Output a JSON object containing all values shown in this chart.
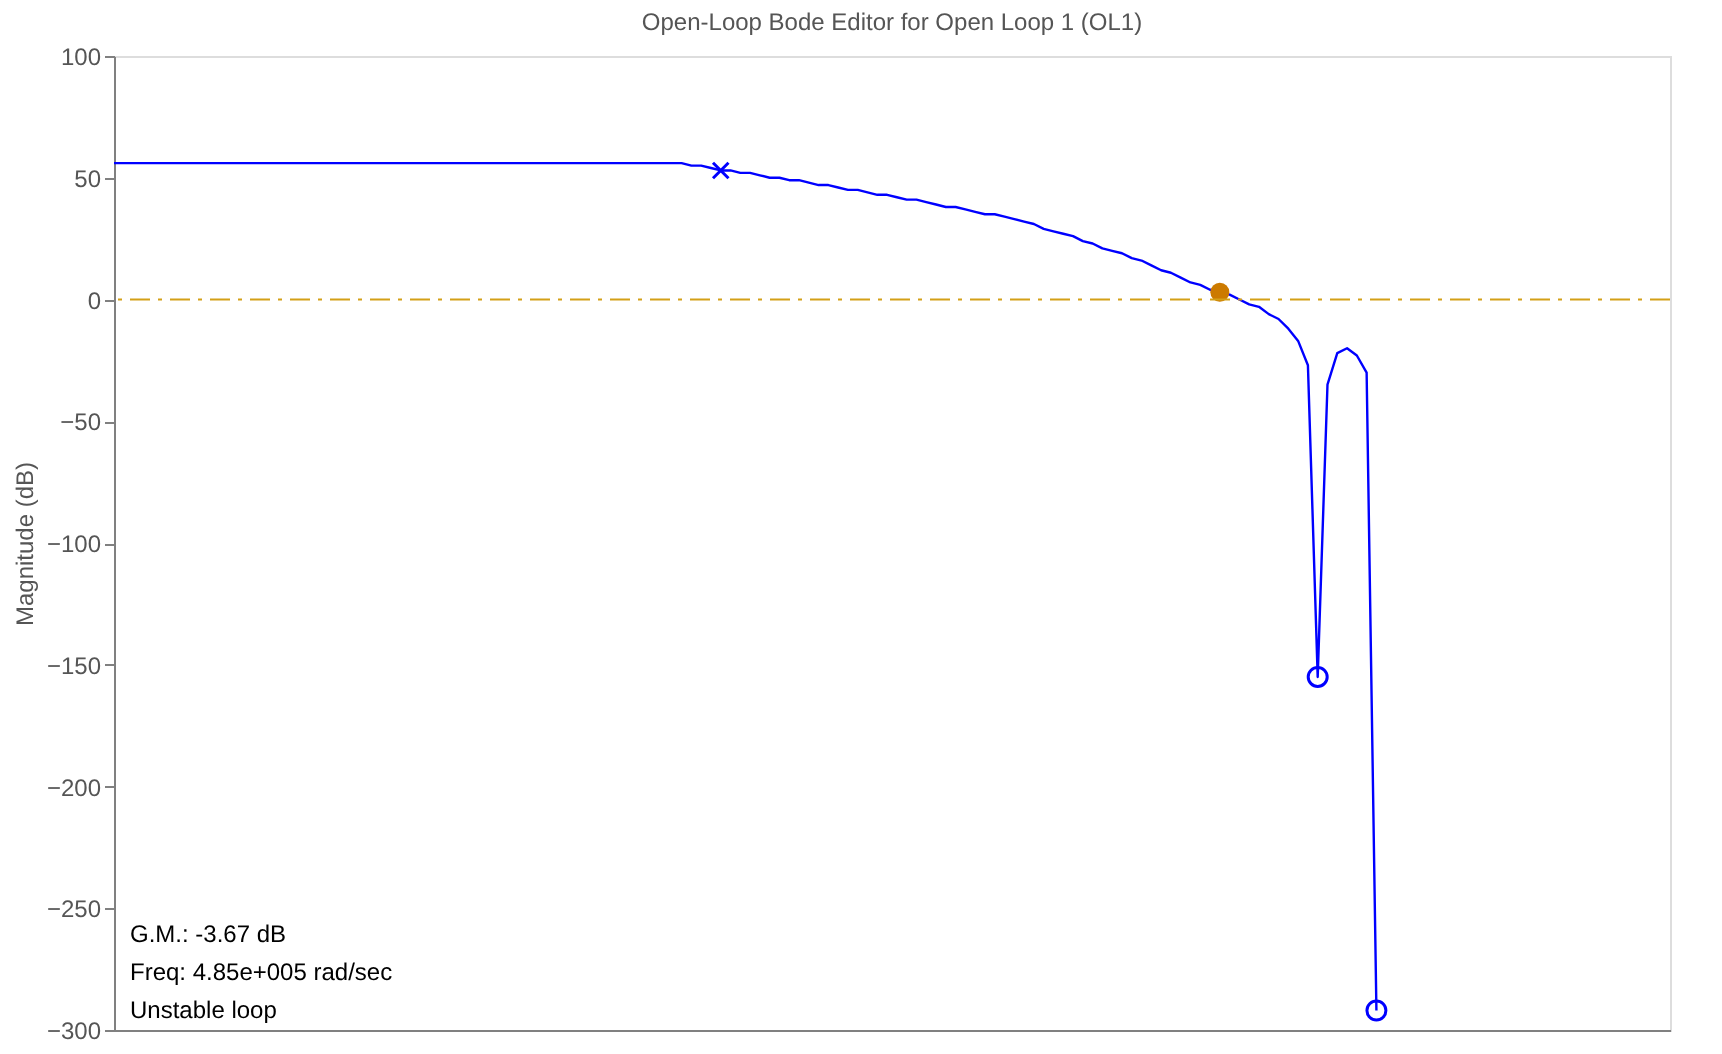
{
  "chart_data": {
    "type": "line",
    "title": "Open-Loop Bode Editor for Open Loop 1 (OL1)",
    "ylabel": "Magnitude (dB)",
    "categories": [
      null,
      null,
      null,
      null,
      null,
      null,
      null,
      null,
      null,
      null,
      null,
      null,
      null,
      null,
      null,
      null,
      null,
      null,
      null,
      null,
      null,
      null,
      null,
      null,
      null,
      null,
      null,
      null,
      null,
      null,
      null,
      null,
      null,
      null,
      null,
      null,
      null,
      null,
      null,
      null,
      null,
      null,
      null,
      null,
      null,
      null,
      null,
      null,
      null,
      null,
      null,
      null,
      null,
      null,
      null,
      null,
      null,
      null,
      null,
      null,
      null,
      null,
      null,
      null,
      null,
      null,
      null,
      null,
      null,
      null,
      null,
      null,
      null,
      null,
      null,
      null,
      null,
      null,
      null,
      null,
      null,
      null,
      null,
      null,
      null,
      null,
      null,
      null,
      null,
      null,
      null,
      null,
      null,
      null,
      null,
      null,
      null,
      null,
      null,
      null,
      null,
      null,
      null,
      null,
      null,
      null,
      null,
      null,
      null,
      null,
      null,
      null,
      null,
      null,
      null,
      null,
      null,
      null,
      null,
      null,
      null,
      null,
      null,
      null,
      null,
      null,
      null,
      null,
      null,
      null,
      null,
      null,
      null,
      null,
      null,
      null,
      null,
      null,
      null,
      null,
      null,
      null,
      null,
      null,
      null,
      null,
      null,
      null,
      null,
      null,
      null,
      null,
      null,
      null,
      null,
      null,
      null,
      null,
      null,
      null
    ],
    "series": [
      {
        "color": "#0000ff",
        "marker": "none",
        "line_style": "solid",
        "values": [
          56,
          56,
          56,
          56,
          56,
          56,
          56,
          56,
          56,
          56,
          56,
          56,
          56,
          56,
          56,
          56,
          56,
          56,
          56,
          56,
          56,
          56,
          56,
          56,
          56,
          56,
          56,
          56,
          56,
          56,
          56,
          56,
          56,
          56,
          56,
          56,
          56,
          56,
          56,
          56,
          56,
          56,
          56,
          56,
          56,
          56,
          56,
          56,
          56,
          56,
          56,
          56,
          56,
          56,
          56,
          56,
          56,
          56,
          56,
          55,
          55,
          54,
          53,
          53,
          52,
          52,
          51,
          50,
          50,
          49,
          49,
          48,
          47,
          47,
          46,
          45,
          45,
          44,
          43,
          43,
          42,
          41,
          41,
          40,
          39,
          38,
          38,
          37,
          36,
          35,
          35,
          34,
          33,
          32,
          31,
          29,
          28,
          27,
          26,
          24,
          23,
          21,
          20,
          19,
          17,
          16,
          14,
          12,
          11,
          9,
          7,
          6,
          4,
          3,
          2,
          0,
          -2,
          -3,
          -6,
          -8,
          -12,
          -17,
          -27,
          -155,
          -35,
          -22,
          -20,
          -23,
          -30,
          -292,
          null,
          null,
          null,
          null,
          null,
          null,
          null,
          null,
          null,
          null,
          null,
          null,
          null,
          null,
          null,
          null,
          null,
          null,
          null,
          null,
          null,
          null,
          null,
          null,
          null,
          null,
          null,
          null,
          null,
          null
        ]
      },
      {
        "type": "scatter",
        "color": "#0000ff",
        "marker": "cross",
        "values": [
          null,
          null,
          null,
          null,
          null,
          null,
          null,
          null,
          null,
          null,
          null,
          null,
          null,
          null,
          null,
          null,
          null,
          null,
          null,
          null,
          null,
          null,
          null,
          null,
          null,
          null,
          null,
          null,
          null,
          null,
          null,
          null,
          null,
          null,
          null,
          null,
          null,
          null,
          null,
          null,
          null,
          null,
          null,
          null,
          null,
          null,
          null,
          null,
          null,
          null,
          null,
          null,
          null,
          null,
          null,
          null,
          null,
          null,
          null,
          null,
          null,
          null,
          53,
          null,
          null,
          null,
          null,
          null,
          null,
          null,
          null,
          null,
          null,
          null,
          null,
          null,
          null,
          null,
          null,
          null,
          null,
          null,
          null,
          null,
          null,
          null,
          null,
          null,
          null,
          null,
          null,
          null,
          null,
          null,
          null,
          null,
          null,
          null,
          null,
          null,
          null,
          null,
          null,
          null,
          null,
          null,
          null,
          null,
          null,
          null,
          null,
          null,
          null,
          null,
          null,
          null,
          null,
          null,
          null,
          null,
          null,
          null,
          null,
          null,
          null,
          null,
          null,
          null,
          null,
          null,
          null,
          null,
          null,
          null,
          null,
          null,
          null,
          null,
          null,
          null,
          null,
          null,
          null,
          null,
          null,
          null,
          null,
          null,
          null,
          null,
          null,
          null,
          null,
          null,
          null,
          null,
          null,
          null,
          null,
          null
        ]
      },
      {
        "type": "scatter",
        "color": "#cc7a00",
        "marker": "circle",
        "values": [
          null,
          null,
          null,
          null,
          null,
          null,
          null,
          null,
          null,
          null,
          null,
          null,
          null,
          null,
          null,
          null,
          null,
          null,
          null,
          null,
          null,
          null,
          null,
          null,
          null,
          null,
          null,
          null,
          null,
          null,
          null,
          null,
          null,
          null,
          null,
          null,
          null,
          null,
          null,
          null,
          null,
          null,
          null,
          null,
          null,
          null,
          null,
          null,
          null,
          null,
          null,
          null,
          null,
          null,
          null,
          null,
          null,
          null,
          null,
          null,
          null,
          null,
          null,
          null,
          null,
          null,
          null,
          null,
          null,
          null,
          null,
          null,
          null,
          null,
          null,
          null,
          null,
          null,
          null,
          null,
          null,
          null,
          null,
          null,
          null,
          null,
          null,
          null,
          null,
          null,
          null,
          null,
          null,
          null,
          null,
          null,
          null,
          null,
          null,
          null,
          null,
          null,
          null,
          null,
          null,
          null,
          null,
          null,
          null,
          null,
          null,
          null,
          null,
          3,
          null,
          null,
          null,
          null,
          null,
          null,
          null,
          null,
          null,
          null,
          null,
          null,
          null,
          null,
          null,
          null,
          null,
          null,
          null,
          null,
          null,
          null,
          null,
          null,
          null,
          null,
          null,
          null,
          null,
          null,
          null,
          null,
          null,
          null,
          null,
          null,
          null,
          null,
          null,
          null,
          null,
          null,
          null,
          null,
          null,
          null
        ]
      },
      {
        "type": "scatter",
        "color": "#0000ff",
        "marker": "circle",
        "values": [
          null,
          null,
          null,
          null,
          null,
          null,
          null,
          null,
          null,
          null,
          null,
          null,
          null,
          null,
          null,
          null,
          null,
          null,
          null,
          null,
          null,
          null,
          null,
          null,
          null,
          null,
          null,
          null,
          null,
          null,
          null,
          null,
          null,
          null,
          null,
          null,
          null,
          null,
          null,
          null,
          null,
          null,
          null,
          null,
          null,
          null,
          null,
          null,
          null,
          null,
          null,
          null,
          null,
          null,
          null,
          null,
          null,
          null,
          null,
          null,
          null,
          null,
          null,
          null,
          null,
          null,
          null,
          null,
          null,
          null,
          null,
          null,
          null,
          null,
          null,
          null,
          null,
          null,
          null,
          null,
          null,
          null,
          null,
          null,
          null,
          null,
          null,
          null,
          null,
          null,
          null,
          null,
          null,
          null,
          null,
          null,
          null,
          null,
          null,
          null,
          null,
          null,
          null,
          null,
          null,
          null,
          null,
          null,
          null,
          null,
          null,
          null,
          null,
          null,
          null,
          null,
          null,
          null,
          null,
          null,
          null,
          null,
          null,
          -155,
          null,
          null,
          null,
          null,
          null,
          -292,
          null,
          null,
          null,
          null,
          null,
          null,
          null,
          null,
          null,
          null,
          null,
          null,
          null,
          null,
          null,
          null,
          null,
          null,
          null,
          null,
          null,
          null,
          null,
          null,
          null,
          null,
          null,
          null,
          null,
          null
        ]
      }
    ],
    "ylim": [
      -300,
      100
    ],
    "yticks": [
      -300,
      -250,
      -200,
      -150,
      -100,
      -50,
      0,
      50,
      100
    ],
    "ref_lines": [
      {
        "axis": "y",
        "value": 0,
        "color": "#d4a017",
        "line_style": "dashed"
      }
    ],
    "annotations": [
      "G.M.: -3.67 dB",
      "Freq: 4.85e+005 rad/sec",
      "Unstable loop"
    ],
    "grid": false,
    "tick_labels": "y"
  }
}
